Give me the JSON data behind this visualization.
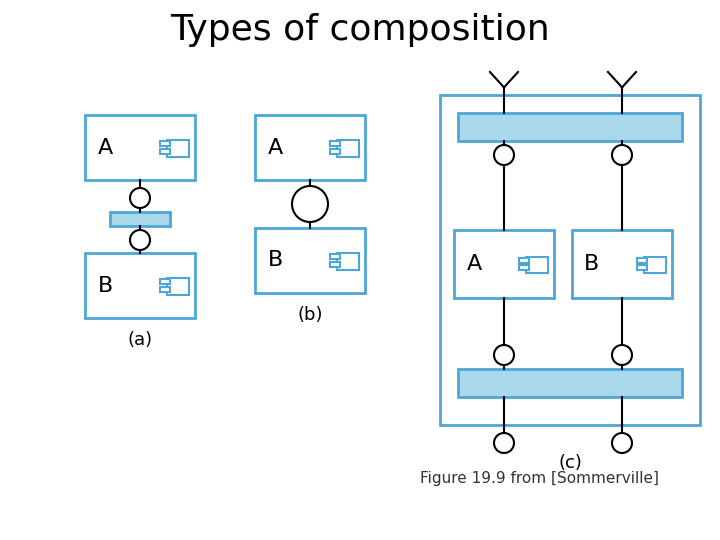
{
  "title": "Types of composition",
  "subtitle": "Figure 19.9 from [Sommerville]",
  "bg_color": "#ffffff",
  "box_fill": "#ffffff",
  "box_edge": "#4da6d6",
  "bar_fill": "#a8d8ea",
  "bar_edge": "#4da6d6",
  "outer_fill": "#ffffff",
  "outer_edge": "#4da6d6",
  "label_a": "A",
  "label_b": "B",
  "label_a_sub": "(a)",
  "label_b_sub": "(b)",
  "label_c_sub": "(c)"
}
